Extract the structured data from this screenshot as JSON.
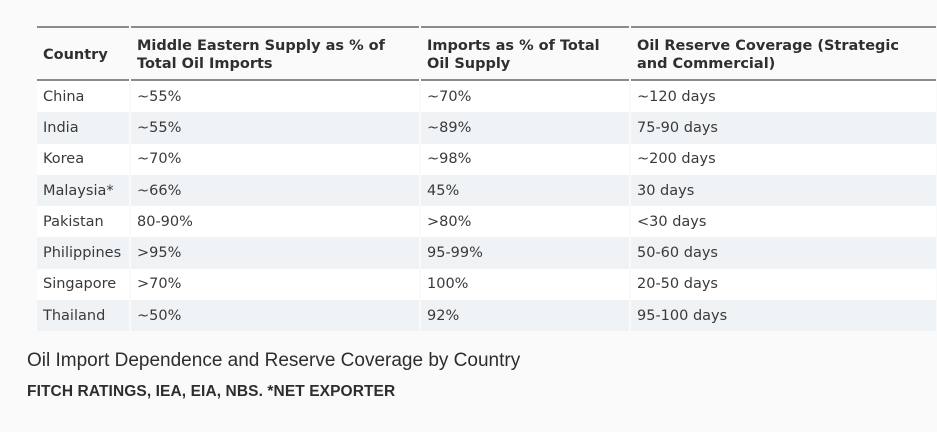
{
  "table": {
    "headers": [
      "Country",
      "Middle Eastern Supply as % of Total Oil Imports",
      "Imports as % of Total Oil Supply",
      "Oil Reserve Coverage (Strategic and Commercial)"
    ],
    "rows": [
      [
        "China",
        "~55%",
        "~70%",
        "~120 days"
      ],
      [
        "India",
        "~55%",
        "~89%",
        "75-90 days"
      ],
      [
        "Korea",
        "~70%",
        "~98%",
        "~200 days"
      ],
      [
        "Malaysia*",
        "~66%",
        "45%",
        "30 days"
      ],
      [
        "Pakistan",
        "80-90%",
        ">80%",
        "<30 days"
      ],
      [
        "Philippines",
        ">95%",
        "95-99%",
        "50-60 days"
      ],
      [
        "Singapore",
        ">70%",
        "100%",
        "20-50 days"
      ],
      [
        "Thailand",
        "~50%",
        "92%",
        "95-100 days"
      ]
    ]
  },
  "caption": "Oil Import Dependence and Reserve Coverage by Country",
  "source": "FITCH RATINGS, IEA, EIA, NBS. *NET EXPORTER",
  "colors": {
    "stripe": "#eff3f6",
    "rule": "#8a8a8a",
    "background": "#fafafa"
  }
}
